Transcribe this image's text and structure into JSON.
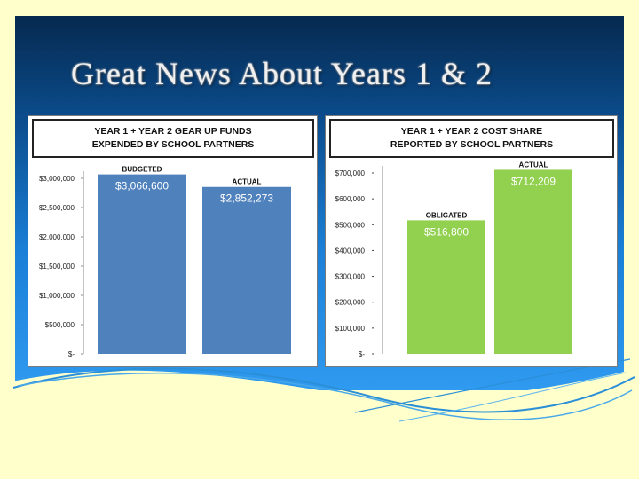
{
  "slide": {
    "title": "Great News About Years 1 & 2"
  },
  "colors": {
    "background": "#ffffcc",
    "panel_top": "#06294f",
    "panel_bottom": "#2f9af0",
    "bar_blue": "#4f81bd",
    "bar_green": "#92d050"
  },
  "chart_data": [
    {
      "type": "bar",
      "title_line1": "YEAR 1 + YEAR 2 GEAR UP FUNDS",
      "title_line2": "EXPENDED BY SCHOOL PARTNERS",
      "categories": [
        "BUDGETED",
        "ACTUAL"
      ],
      "values": [
        3066600,
        2852273
      ],
      "data_labels": [
        "$3,066,600",
        "$2,852,273"
      ],
      "ylim": [
        0,
        3000000
      ],
      "yticks": [
        "$-",
        "$500,000",
        "$1,000,000",
        "$1,500,000",
        "$2,000,000",
        "$2,500,000",
        "$3,000,000"
      ],
      "color": "#4f81bd",
      "grid": false
    },
    {
      "type": "bar",
      "title_line1": "YEAR 1 + YEAR 2 COST SHARE",
      "title_line2": "REPORTED BY SCHOOL PARTNERS",
      "categories": [
        "OBLIGATED",
        "ACTUAL"
      ],
      "values": [
        516800,
        712209
      ],
      "data_labels": [
        "$516,800",
        "$712,209"
      ],
      "ylim": [
        0,
        700000
      ],
      "yticks": [
        "$-",
        "$100,000",
        "$200,000",
        "$300,000",
        "$400,000",
        "$500,000",
        "$600,000",
        "$700,000"
      ],
      "color": "#92d050",
      "grid": false
    }
  ]
}
